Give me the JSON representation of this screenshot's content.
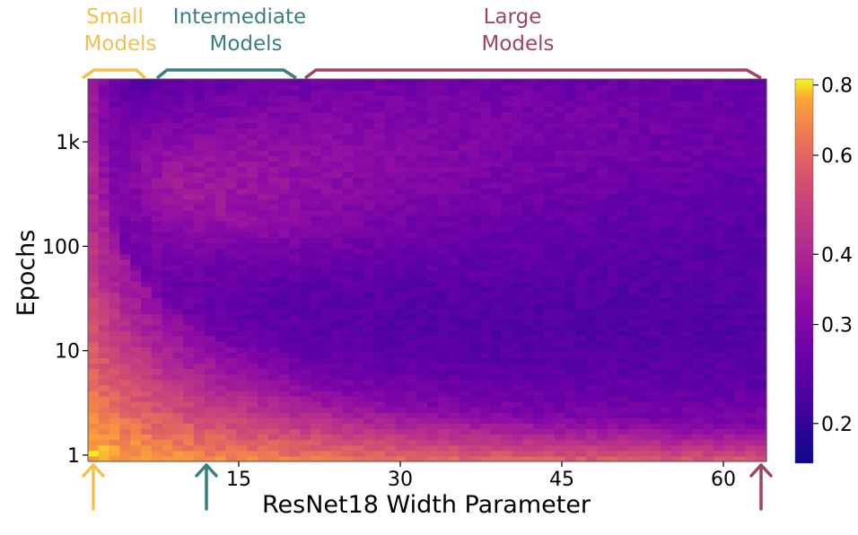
{
  "chart_data": {
    "type": "heatmap",
    "title": "",
    "xlabel": "ResNet18 Width Parameter",
    "ylabel": "Epochs",
    "x_range": [
      1,
      64
    ],
    "y_range": [
      1,
      4000
    ],
    "y_scale": "log",
    "x_ticks": [
      15,
      30,
      45,
      60
    ],
    "y_ticks": [
      {
        "value": 1,
        "label": "1"
      },
      {
        "value": 10,
        "label": "10"
      },
      {
        "value": 100,
        "label": "100"
      },
      {
        "value": 1000,
        "label": "1k"
      }
    ],
    "colorbar": {
      "colormap": "plasma",
      "range": [
        0.17,
        0.82
      ],
      "scale": "log",
      "ticks": [
        0.2,
        0.3,
        0.4,
        0.6,
        0.8
      ],
      "tick_labels": [
        "0.2",
        "0.3",
        "0.4",
        "0.6",
        "0.8"
      ]
    },
    "grid": false,
    "value_description": "Test error: high (yellow) at small widths and few epochs; low (dark) for large widths with mid epochs; a band of elevated error follows the interpolation threshold curving from width ~3 at high epochs to width ~64 at ~3 epochs.",
    "sample_values": [
      {
        "width": 1,
        "epochs": 1,
        "value": 0.82
      },
      {
        "width": 1,
        "epochs": 1000,
        "value": 0.5
      },
      {
        "width": 12,
        "epochs": 1000,
        "value": 0.4
      },
      {
        "width": 12,
        "epochs": 30,
        "value": 0.2
      },
      {
        "width": 30,
        "epochs": 10,
        "value": 0.28
      },
      {
        "width": 45,
        "epochs": 20,
        "value": 0.2
      },
      {
        "width": 60,
        "epochs": 1000,
        "value": 0.22
      },
      {
        "width": 60,
        "epochs": 1,
        "value": 0.55
      }
    ]
  },
  "groups": [
    {
      "label_line1": "Small",
      "label_line2": "Models",
      "color": "#f0c050",
      "arrow_width": 1
    },
    {
      "label_line1": "Intermediate",
      "label_line2": "Models",
      "color": "#3a7f7f",
      "arrow_width": 12
    },
    {
      "label_line1": "Large",
      "label_line2": "Models",
      "color": "#9e4460",
      "arrow_width": 64
    }
  ]
}
